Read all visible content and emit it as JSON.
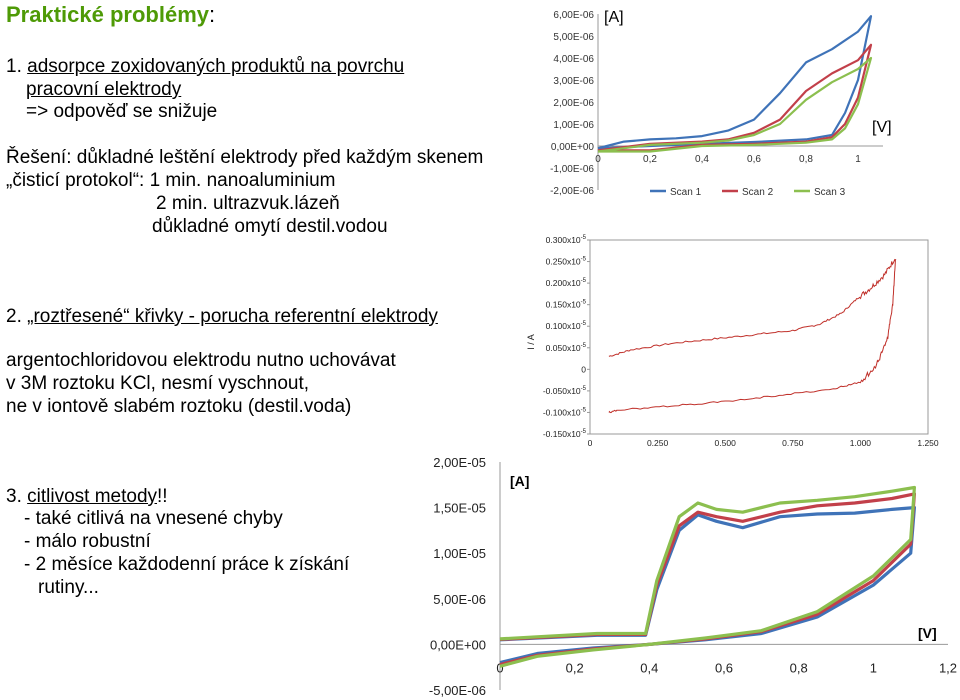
{
  "title": {
    "text": "Praktické problémy",
    "colon": ":"
  },
  "section1": {
    "num": "1.",
    "line1": "adsorpce zoxidovaných produktů na povrchu",
    "line2": "pracovní elektrody",
    "line3": "=> odpověď se snižuje",
    "solution_line1": "Řešení: důkladné leštění elektrody před každým skenem",
    "solution_line2": "„čisticí protokol“: 1 min. nanoaluminium",
    "solution_line3": "2 min. ultrazvuk.lázeň",
    "solution_line4": "důkladné omytí destil.vodou"
  },
  "section2": {
    "num": "2.",
    "heading": "„roztřesené“ křivky - porucha referentní elektrody",
    "line1": "argentochloridovou elektrodu nutno uchovávat",
    "line2": "v 3M roztoku KCl, nesmí vyschnout,",
    "line3": "ne v iontově slabém roztoku (destil.voda)"
  },
  "section3": {
    "num": "3.",
    "heading": "citlivost metody",
    "heading_tail": "!!",
    "line1": "- také citlivá na vnesené chyby",
    "line2": "- málo robustní",
    "line3": "- 2 měsíce každodenní práce k získání",
    "line4": "rutiny..."
  },
  "colors": {
    "title": "#4e9a06",
    "scan1": "#3f73b8",
    "scan2": "#c2404a",
    "scan3": "#8cbf4f",
    "noisy": "#c0302a"
  },
  "chart_data": [
    {
      "type": "line",
      "title": "",
      "xlabel": "[V]",
      "ylabel": "[A]",
      "xlim": [
        0,
        1
      ],
      "ylim": [
        -2e-06,
        6e-06
      ],
      "xticks": [
        "0",
        "0,2",
        "0,4",
        "0,6",
        "0,8",
        "1"
      ],
      "yticks": [
        "6,00E-06",
        "5,00E-06",
        "4,00E-06",
        "3,00E-06",
        "2,00E-06",
        "1,00E-06",
        "0,00E+00",
        "-1,00E-06",
        "-2,00E-06"
      ],
      "legend": "bottom",
      "series": [
        {
          "name": "Scan 1",
          "values": [
            [
              0.0,
              -1e-07
            ],
            [
              0.1,
              2e-07
            ],
            [
              0.2,
              3e-07
            ],
            [
              0.3,
              3.5e-07
            ],
            [
              0.4,
              4.5e-07
            ],
            [
              0.5,
              7e-07
            ],
            [
              0.6,
              1.2e-06
            ],
            [
              0.7,
              2.4e-06
            ],
            [
              0.8,
              3.8e-06
            ],
            [
              0.9,
              4.4e-06
            ],
            [
              1.0,
              5.2e-06
            ],
            [
              1.05,
              5.9e-06
            ],
            [
              1.0,
              3e-06
            ],
            [
              0.95,
              1.5e-06
            ],
            [
              0.9,
              5e-07
            ],
            [
              0.8,
              3e-07
            ],
            [
              0.6,
              1.8e-07
            ],
            [
              0.4,
              1e-07
            ],
            [
              0.2,
              0.0
            ],
            [
              0.0,
              -1e-07
            ]
          ]
        },
        {
          "name": "Scan 2",
          "values": [
            [
              0.0,
              -2e-07
            ],
            [
              0.2,
              1e-07
            ],
            [
              0.4,
              2e-07
            ],
            [
              0.5,
              3e-07
            ],
            [
              0.6,
              6e-07
            ],
            [
              0.7,
              1.2e-06
            ],
            [
              0.8,
              2.5e-06
            ],
            [
              0.9,
              3.3e-06
            ],
            [
              1.0,
              3.9e-06
            ],
            [
              1.05,
              4.6e-06
            ],
            [
              1.0,
              2.2e-06
            ],
            [
              0.95,
              1e-06
            ],
            [
              0.9,
              4e-07
            ],
            [
              0.8,
              2e-07
            ],
            [
              0.6,
              1e-07
            ],
            [
              0.4,
              5e-08
            ],
            [
              0.2,
              -2e-07
            ],
            [
              0.0,
              -2e-07
            ]
          ]
        },
        {
          "name": "Scan 3",
          "values": [
            [
              0.0,
              -2.5e-07
            ],
            [
              0.2,
              5e-08
            ],
            [
              0.4,
              1.5e-07
            ],
            [
              0.5,
              2.5e-07
            ],
            [
              0.6,
              5e-07
            ],
            [
              0.7,
              1e-06
            ],
            [
              0.8,
              2.1e-06
            ],
            [
              0.9,
              2.9e-06
            ],
            [
              1.0,
              3.5e-06
            ],
            [
              1.05,
              4e-06
            ],
            [
              1.0,
              1.9e-06
            ],
            [
              0.95,
              8e-07
            ],
            [
              0.9,
              3e-07
            ],
            [
              0.8,
              1.5e-07
            ],
            [
              0.6,
              5e-08
            ],
            [
              0.4,
              0.0
            ],
            [
              0.2,
              -2.5e-07
            ],
            [
              0.0,
              -2.5e-07
            ]
          ]
        }
      ]
    },
    {
      "type": "line",
      "title": "",
      "xlabel": "",
      "ylabel": "I / A",
      "xlim": [
        0,
        1.25
      ],
      "ylim": [
        -1.5e-06,
        3e-06
      ],
      "xticks": [
        "0",
        "0.250",
        "0.500",
        "0.750",
        "1.000",
        "1.250"
      ],
      "yticks": [
        "0.300x10",
        "0.250x10",
        "0.200x10",
        "0.150x10",
        "0.100x10",
        "0.050x10",
        "0",
        "-0.050x10",
        "-0.100x10",
        "-0.150x10"
      ],
      "ytick_exp": [
        "-5",
        "-5",
        "-5",
        "-5",
        "-5",
        "-5",
        "",
        "-5",
        "-5",
        "-5"
      ],
      "series": [
        {
          "name": "",
          "values": [
            [
              0.07,
              3e-07
            ],
            [
              0.15,
              4.5e-07
            ],
            [
              0.3,
              6e-07
            ],
            [
              0.45,
              7e-07
            ],
            [
              0.6,
              8e-07
            ],
            [
              0.75,
              9e-07
            ],
            [
              0.85,
              1.05e-06
            ],
            [
              0.93,
              1.3e-06
            ],
            [
              0.99,
              1.65e-06
            ],
            [
              1.04,
              1.9e-06
            ],
            [
              1.09,
              2.2e-06
            ],
            [
              1.13,
              2.6e-06
            ],
            [
              1.12,
              1.5e-06
            ],
            [
              1.1,
              7e-07
            ],
            [
              1.06,
              1e-07
            ],
            [
              1.0,
              -3e-07
            ],
            [
              0.9,
              -4.5e-07
            ],
            [
              0.7,
              -6e-07
            ],
            [
              0.5,
              -7.5e-07
            ],
            [
              0.3,
              -8.5e-07
            ],
            [
              0.1,
              -9.5e-07
            ],
            [
              0.07,
              -1e-06
            ]
          ]
        }
      ]
    },
    {
      "type": "line",
      "title": "",
      "xlabel": "[V]",
      "ylabel": "[A]",
      "xlim": [
        0,
        1.2
      ],
      "ylim": [
        -5e-06,
        2e-05
      ],
      "xticks": [
        "0",
        "0,2",
        "0,4",
        "0,6",
        "0,8",
        "1",
        "1,2"
      ],
      "yticks": [
        "2,00E-05",
        "1,50E-05",
        "1,00E-05",
        "5,00E-06",
        "0,00E+00",
        "-5,00E-06"
      ],
      "series": [
        {
          "name": "",
          "color": "#3f73b8",
          "values": [
            [
              0.0,
              -2e-06
            ],
            [
              0.1,
              -1e-06
            ],
            [
              0.25,
              -4e-07
            ],
            [
              0.4,
              0.0
            ],
            [
              0.55,
              5e-07
            ],
            [
              0.7,
              1.2e-06
            ],
            [
              0.85,
              3e-06
            ],
            [
              1.0,
              6.5e-06
            ],
            [
              1.1,
              1e-05
            ],
            [
              1.11,
              1.5e-05
            ],
            [
              1.05,
              1.48e-05
            ],
            [
              0.95,
              1.44e-05
            ],
            [
              0.85,
              1.43e-05
            ],
            [
              0.75,
              1.4e-05
            ],
            [
              0.65,
              1.28e-05
            ],
            [
              0.58,
              1.35e-05
            ],
            [
              0.53,
              1.42e-05
            ],
            [
              0.48,
              1.25e-05
            ],
            [
              0.42,
              6e-06
            ],
            [
              0.39,
              1e-06
            ],
            [
              0.32,
              1e-06
            ],
            [
              0.26,
              1e-06
            ],
            [
              0.0,
              5e-07
            ]
          ]
        },
        {
          "name": "",
          "color": "#c2404a",
          "values": [
            [
              0.0,
              -2.2e-06
            ],
            [
              0.1,
              -1.2e-06
            ],
            [
              0.25,
              -5e-07
            ],
            [
              0.4,
              0.0
            ],
            [
              0.55,
              6e-07
            ],
            [
              0.7,
              1.4e-06
            ],
            [
              0.85,
              3.3e-06
            ],
            [
              1.0,
              7e-06
            ],
            [
              1.1,
              1.1e-05
            ],
            [
              1.11,
              1.65e-05
            ],
            [
              1.05,
              1.6e-05
            ],
            [
              0.95,
              1.55e-05
            ],
            [
              0.85,
              1.52e-05
            ],
            [
              0.75,
              1.45e-05
            ],
            [
              0.65,
              1.35e-05
            ],
            [
              0.58,
              1.4e-05
            ],
            [
              0.53,
              1.45e-05
            ],
            [
              0.48,
              1.3e-05
            ],
            [
              0.42,
              6.5e-06
            ],
            [
              0.39,
              1.1e-06
            ],
            [
              0.32,
              1.1e-06
            ],
            [
              0.26,
              1.1e-06
            ],
            [
              0.0,
              5.5e-07
            ]
          ]
        },
        {
          "name": "",
          "color": "#8cbf4f",
          "values": [
            [
              0.0,
              -2.4e-06
            ],
            [
              0.1,
              -1.3e-06
            ],
            [
              0.25,
              -6e-07
            ],
            [
              0.4,
              0.0
            ],
            [
              0.55,
              7e-07
            ],
            [
              0.7,
              1.5e-06
            ],
            [
              0.85,
              3.6e-06
            ],
            [
              1.0,
              7.5e-06
            ],
            [
              1.1,
              1.15e-05
            ],
            [
              1.11,
              1.72e-05
            ],
            [
              1.05,
              1.68e-05
            ],
            [
              0.95,
              1.62e-05
            ],
            [
              0.85,
              1.58e-05
            ],
            [
              0.75,
              1.55e-05
            ],
            [
              0.65,
              1.45e-05
            ],
            [
              0.58,
              1.48e-05
            ],
            [
              0.53,
              1.55e-05
            ],
            [
              0.48,
              1.4e-05
            ],
            [
              0.42,
              7e-06
            ],
            [
              0.39,
              1.2e-06
            ],
            [
              0.32,
              1.2e-06
            ],
            [
              0.26,
              1.2e-06
            ],
            [
              0.0,
              6e-07
            ]
          ]
        }
      ]
    }
  ]
}
